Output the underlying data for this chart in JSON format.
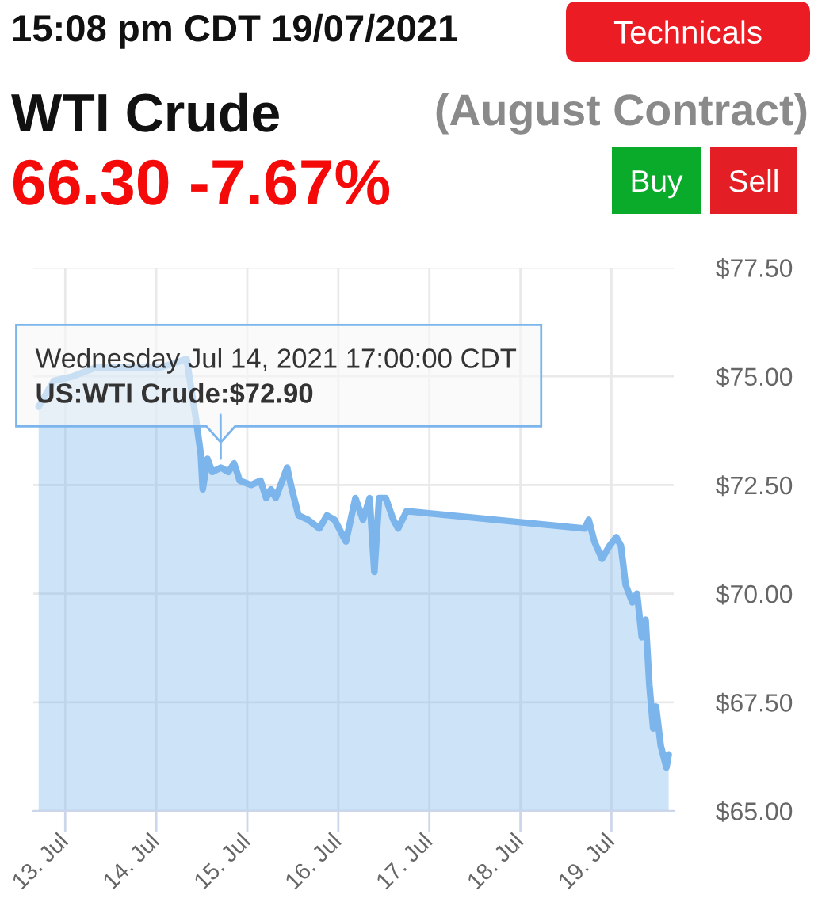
{
  "chart_data": {
    "type": "area",
    "title": "WTI Crude",
    "subtitle": "(August Contract)",
    "annotations": [
      "15:08 pm CDT 19/07/2021",
      "66.30 -7.67%",
      "Technicals",
      "Buy",
      "Sell",
      "Wednesday Jul 14, 2021 17:00:00 CDT",
      {
        "text": "US:WTI Crude:$72.90",
        "x": "2021-07-14T17:00",
        "y": 72.9
      }
    ],
    "x": [
      "2021-07-12T17:00",
      "2021-07-12T21:00",
      "2021-07-13T02:00",
      "2021-07-13T08:00",
      "2021-07-13T16:30",
      "2021-07-14T01:00",
      "2021-07-14T08:00",
      "2021-07-14T10:30",
      "2021-07-14T11:45",
      "2021-07-14T12:15",
      "2021-07-14T13:30",
      "2021-07-14T14:45",
      "2021-07-14T17:00",
      "2021-07-14T19:00",
      "2021-07-14T20:30",
      "2021-07-14T22:00",
      "2021-07-15T01:00",
      "2021-07-15T03:30",
      "2021-07-15T05:00",
      "2021-07-15T06:15",
      "2021-07-15T07:30",
      "2021-07-15T10:30",
      "2021-07-15T11:45",
      "2021-07-15T13:30",
      "2021-07-15T16:00",
      "2021-07-15T19:00",
      "2021-07-15T21:00",
      "2021-07-15T23:00",
      "2021-07-16T02:00",
      "2021-07-16T04:30",
      "2021-07-16T06:30",
      "2021-07-16T08:15",
      "2021-07-16T09:30",
      "2021-07-16T10:45",
      "2021-07-16T12:30",
      "2021-07-16T14:30",
      "2021-07-16T15:45",
      "2021-07-16T18:00",
      "2021-07-18T17:00",
      "2021-07-18T18:00",
      "2021-07-18T19:30",
      "2021-07-18T21:30",
      "2021-07-18T23:30",
      "2021-07-19T01:15",
      "2021-07-19T02:30",
      "2021-07-19T03:45",
      "2021-07-19T05:30",
      "2021-07-19T06:45",
      "2021-07-19T08:00",
      "2021-07-19T09:00",
      "2021-07-19T10:00",
      "2021-07-19T11:00",
      "2021-07-19T11:45",
      "2021-07-19T13:00",
      "2021-07-19T14:30",
      "2021-07-19T15:05"
    ],
    "values": [
      74.3,
      74.9,
      75.0,
      75.2,
      75.2,
      75.2,
      75.4,
      74.0,
      73.2,
      72.4,
      73.1,
      72.8,
      72.9,
      72.8,
      73.0,
      72.6,
      72.5,
      72.6,
      72.2,
      72.4,
      72.2,
      72.9,
      72.4,
      71.8,
      71.7,
      71.5,
      71.8,
      71.7,
      71.2,
      72.2,
      71.7,
      72.2,
      70.5,
      72.2,
      72.2,
      71.7,
      71.5,
      71.9,
      71.5,
      71.7,
      71.2,
      70.8,
      71.1,
      71.3,
      71.1,
      70.2,
      69.8,
      70.0,
      69.0,
      69.4,
      67.9,
      66.9,
      67.4,
      66.5,
      66.0,
      66.3
    ],
    "color": "#7cb5ec",
    "xlim": [
      "2021-07-12T15:35",
      "2021-07-19T16:25"
    ],
    "xticks": [
      {
        "value": "2021-07-13",
        "label": "13. Jul"
      },
      {
        "value": "2021-07-14",
        "label": "14. Jul"
      },
      {
        "value": "2021-07-15",
        "label": "15. Jul"
      },
      {
        "value": "2021-07-16",
        "label": "16. Jul"
      },
      {
        "value": "2021-07-17",
        "label": "17. Jul"
      },
      {
        "value": "2021-07-18",
        "label": "18. Jul"
      },
      {
        "value": "2021-07-19",
        "label": "19. Jul"
      }
    ],
    "ylim": [
      65,
      77.5
    ],
    "yticks": [
      {
        "value": 65,
        "label": "$65.00"
      },
      {
        "value": 67.5,
        "label": "$67.50"
      },
      {
        "value": 70,
        "label": "$70.00"
      },
      {
        "value": 72.5,
        "label": "$72.50"
      },
      {
        "value": 75,
        "label": "$75.00"
      },
      {
        "value": 77.5,
        "label": "$77.50"
      }
    ],
    "grid": true
  }
}
